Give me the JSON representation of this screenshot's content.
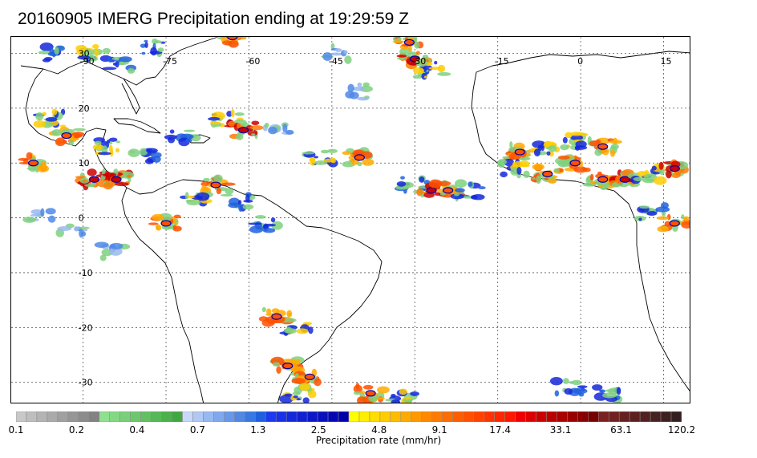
{
  "title": "20160905 IMERG Precipitation ending at 19:29:59 Z",
  "map": {
    "lon_labels": [
      "-90",
      "-75",
      "-60",
      "-45",
      "-30",
      "-15",
      "0",
      "15"
    ],
    "lat_labels": [
      "30",
      "20",
      "10",
      "0",
      "-10",
      "-20",
      "-30"
    ],
    "lon_range": [
      -103,
      20
    ],
    "lat_range": [
      -34,
      33
    ]
  },
  "colorbar": {
    "title": "Precipitation rate (mm/hr)",
    "tick_labels": [
      "0.1",
      "0.2",
      "0.4",
      "0.7",
      "1.3",
      "2.5",
      "4.8",
      "9.1",
      "17.4",
      "33.1",
      "63.1",
      "120.2"
    ],
    "colors": [
      "#c8c8c8",
      "#bebebe",
      "#b4b4b4",
      "#aaaaaa",
      "#a0a0a0",
      "#969696",
      "#8c8c8c",
      "#828282",
      "#8fe08f",
      "#84d884",
      "#78d078",
      "#6cc86c",
      "#62c062",
      "#56b856",
      "#4cb04c",
      "#40a840",
      "#c8d8f8",
      "#b0c8f4",
      "#98b8f0",
      "#80a8ee",
      "#6898ea",
      "#5088e6",
      "#3878e2",
      "#2060de",
      "#1c38f0",
      "#1830e6",
      "#1428dc",
      "#1020d2",
      "#0c18c8",
      "#0810be",
      "#0408b4",
      "#0000aa",
      "#ffff00",
      "#ffee00",
      "#ffdd00",
      "#ffcc00",
      "#ffbb00",
      "#ffaa00",
      "#ff9900",
      "#ff8800",
      "#ff7a00",
      "#ff6c00",
      "#ff5e00",
      "#ff5000",
      "#ff4200",
      "#ff3400",
      "#ff2600",
      "#ff1800",
      "#ee0000",
      "#dd0000",
      "#cc0000",
      "#bb0000",
      "#aa0000",
      "#990000",
      "#880000",
      "#770000",
      "#7a2020",
      "#702020",
      "#662020",
      "#5c2020",
      "#522020",
      "#482020",
      "#3e2020",
      "#342020"
    ]
  },
  "precip_cells": [
    {
      "lon": -95,
      "lat": 30,
      "intensity": 2
    },
    {
      "lon": -88,
      "lat": 30,
      "intensity": 3
    },
    {
      "lon": -77,
      "lat": 31,
      "intensity": 2
    },
    {
      "lon": -63,
      "lat": 33,
      "intensity": 4
    },
    {
      "lon": -44,
      "lat": 30,
      "intensity": 1
    },
    {
      "lon": -30,
      "lat": 29,
      "intensity": 5
    },
    {
      "lon": -31,
      "lat": 32,
      "intensity": 4
    },
    {
      "lon": -27,
      "lat": 27,
      "intensity": 3
    },
    {
      "lon": -41,
      "lat": 23,
      "intensity": 1
    },
    {
      "lon": -83,
      "lat": 28,
      "intensity": 2
    },
    {
      "lon": -96,
      "lat": 18,
      "intensity": 3
    },
    {
      "lon": -93,
      "lat": 15,
      "intensity": 4
    },
    {
      "lon": -86,
      "lat": 13,
      "intensity": 3
    },
    {
      "lon": -99,
      "lat": 10,
      "intensity": 4
    },
    {
      "lon": -88,
      "lat": 7,
      "intensity": 5
    },
    {
      "lon": -84,
      "lat": 7,
      "intensity": 5
    },
    {
      "lon": -79,
      "lat": 11,
      "intensity": 2
    },
    {
      "lon": -72,
      "lat": 15,
      "intensity": 2
    },
    {
      "lon": -64,
      "lat": 18,
      "intensity": 3
    },
    {
      "lon": -61,
      "lat": 16,
      "intensity": 5
    },
    {
      "lon": -55,
      "lat": 16,
      "intensity": 1
    },
    {
      "lon": -66,
      "lat": 6,
      "intensity": 4
    },
    {
      "lon": -70,
      "lat": 3,
      "intensity": 3
    },
    {
      "lon": -75,
      "lat": -1,
      "intensity": 4
    },
    {
      "lon": -62,
      "lat": 3,
      "intensity": 2
    },
    {
      "lon": -57,
      "lat": -1,
      "intensity": 2
    },
    {
      "lon": -47,
      "lat": 11,
      "intensity": 3
    },
    {
      "lon": -40,
      "lat": 11,
      "intensity": 4
    },
    {
      "lon": -30,
      "lat": 6,
      "intensity": 2
    },
    {
      "lon": -27,
      "lat": 5,
      "intensity": 5
    },
    {
      "lon": -24,
      "lat": 5,
      "intensity": 4
    },
    {
      "lon": -20,
      "lat": 5,
      "intensity": 2
    },
    {
      "lon": -11,
      "lat": 12,
      "intensity": 4
    },
    {
      "lon": -6,
      "lat": 13,
      "intensity": 3
    },
    {
      "lon": -1,
      "lat": 14,
      "intensity": 3
    },
    {
      "lon": 4,
      "lat": 13,
      "intensity": 4
    },
    {
      "lon": -12,
      "lat": 9,
      "intensity": 3
    },
    {
      "lon": -6,
      "lat": 8,
      "intensity": 4
    },
    {
      "lon": -1,
      "lat": 10,
      "intensity": 4
    },
    {
      "lon": 4,
      "lat": 7,
      "intensity": 4
    },
    {
      "lon": 8,
      "lat": 7,
      "intensity": 5
    },
    {
      "lon": 12,
      "lat": 8,
      "intensity": 3
    },
    {
      "lon": 17,
      "lat": 9,
      "intensity": 5
    },
    {
      "lon": 17,
      "lat": -1,
      "intensity": 4
    },
    {
      "lon": 13,
      "lat": 1,
      "intensity": 2
    },
    {
      "lon": -55,
      "lat": -18,
      "intensity": 4
    },
    {
      "lon": -51,
      "lat": -20,
      "intensity": 3
    },
    {
      "lon": -53,
      "lat": -27,
      "intensity": 4
    },
    {
      "lon": -49,
      "lat": -29,
      "intensity": 4
    },
    {
      "lon": -51,
      "lat": -32,
      "intensity": 3
    },
    {
      "lon": -38,
      "lat": -32,
      "intensity": 4
    },
    {
      "lon": -32,
      "lat": -33,
      "intensity": 3
    },
    {
      "lon": -2,
      "lat": -31,
      "intensity": 2
    },
    {
      "lon": 5,
      "lat": -32,
      "intensity": 2
    },
    {
      "lon": -98,
      "lat": 0,
      "intensity": 1
    },
    {
      "lon": -92,
      "lat": -2,
      "intensity": 1
    },
    {
      "lon": -85,
      "lat": -6,
      "intensity": 1
    }
  ]
}
